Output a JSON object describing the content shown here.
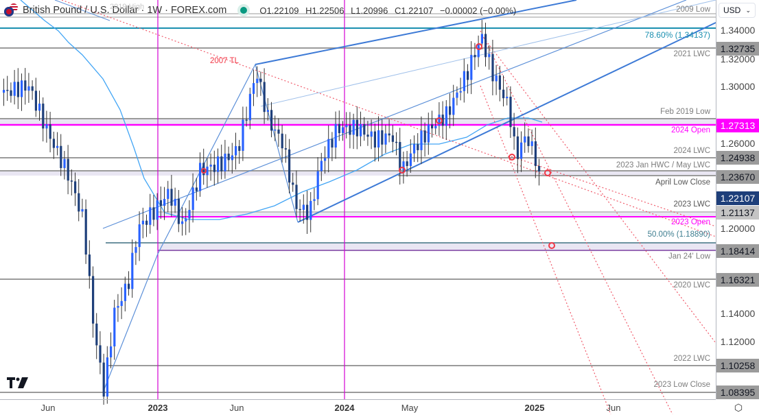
{
  "header": {
    "symbol_title": "British Pound / U.S. Dollar · 1W · FOREX.com",
    "status": "market-open-dot",
    "open": "O1.22109",
    "high": "H1.22506",
    "low": "L1.20996",
    "close": "C1.22107",
    "change": "−0.00002 (−0.00%)"
  },
  "currency_selector": {
    "value": "USD"
  },
  "y_axis": {
    "ticks": [
      "1.34000",
      "1.32000",
      "1.30000",
      "1.26000",
      "1.20000",
      "1.14000",
      "1.12000"
    ],
    "labels": [
      {
        "value": "1.32735",
        "style": "gray"
      },
      {
        "value": "1.27313",
        "style": "magenta"
      },
      {
        "value": "1.24938",
        "style": "gray"
      },
      {
        "value": "1.23670",
        "style": "gray"
      },
      {
        "value": "1.22107",
        "style": "current"
      },
      {
        "value": "1.21137",
        "style": "gray"
      },
      {
        "value": "1.18414",
        "style": "gray"
      },
      {
        "value": "1.16321",
        "style": "gray"
      },
      {
        "value": "1.10258",
        "style": "gray"
      },
      {
        "value": "1.08395",
        "style": "gray"
      }
    ]
  },
  "x_axis": {
    "ticks": [
      {
        "label": "Jun",
        "bold": false
      },
      {
        "label": "2023",
        "bold": true
      },
      {
        "label": "Jun",
        "bold": false
      },
      {
        "label": "2024",
        "bold": true
      },
      {
        "label": "May",
        "bold": false
      },
      {
        "label": "2025",
        "bold": true
      },
      {
        "label": "Jun",
        "bold": false
      }
    ]
  },
  "annotations": {
    "l2009_low": "2009 Low",
    "fib786": "78.60% (1.34137)",
    "lwc2021": "2021 LWC",
    "tl2007": "2007 TL",
    "feb2019": "Feb 2019 Low",
    "open2024": "2024 Open",
    "lwc2024": "2024 LWC",
    "hwc2023": "2023 Jan HWC / May LWC",
    "april_low": "April Low Close",
    "lwc2023": "2023 LWC",
    "open2023": "2023 Open",
    "fib50": "50.00% (1.18890)",
    "jan24_low": "Jan 24' Low",
    "lwc2020": "2020 LWC",
    "lwc2022": "2022 LWC",
    "low_close2023": "2023 Low Close",
    "high2019": "2019 High"
  },
  "colors": {
    "bull": "#2962ff",
    "bear": "#1e3f7a",
    "level_gray": "#9b9b9b",
    "magenta": "#ff00ff",
    "fib_teal": "#1a8fb0",
    "channel_blue": "#3d7ad6",
    "trend_red": "#f23645",
    "zone_fill": "#e9e6f3"
  },
  "chart_data": {
    "type": "candlestick",
    "title": "British Pound / U.S. Dollar · 1W · FOREX.com",
    "timeframe": "1W",
    "last_bar": {
      "open": 1.22109,
      "high": 1.22506,
      "low": 1.20996,
      "close": 1.22107,
      "change": -2e-05,
      "change_pct": -0.0
    },
    "ylim": [
      1.08,
      1.35
    ],
    "x_ticks": [
      "Jun",
      "2023",
      "Jun",
      "2024",
      "May",
      "2025",
      "Jun"
    ],
    "horizontal_levels": [
      {
        "label": "2009 Low",
        "price": 1.3503
      },
      {
        "label": "78.60% (1.34137)",
        "price": 1.34137
      },
      {
        "label": "2021 LWC",
        "price": 1.32735
      },
      {
        "label": "Feb 2019 Low",
        "price": 1.2773
      },
      {
        "label": "2024 Open",
        "price": 1.27313
      },
      {
        "label": "2024 LWC",
        "price": 1.24938
      },
      {
        "label": "2023 Jan HWC / May LWC",
        "price": 1.2388
      },
      {
        "label": "April Low Close",
        "price": 1.2367
      },
      {
        "label": "2023 LWC",
        "price": 1.21137
      },
      {
        "label": "2023 Open",
        "price": 1.2085
      },
      {
        "label": "50.00% (1.18890)",
        "price": 1.1889
      },
      {
        "label": "Jan 24' Low",
        "price": 1.18414
      },
      {
        "label": "2020 LWC",
        "price": 1.16321
      },
      {
        "label": "2022 LWC",
        "price": 1.10258
      },
      {
        "label": "2023 Low Close",
        "price": 1.08395
      }
    ],
    "approx_path": [
      {
        "x": "2022-May",
        "price": 1.26
      },
      {
        "x": "2022-Sep",
        "price": 1.08
      },
      {
        "x": "2023-Jan",
        "price": 1.21
      },
      {
        "x": "2023-Jul",
        "price": 1.31
      },
      {
        "x": "2023-Oct",
        "price": 1.21
      },
      {
        "x": "2024-Jan",
        "price": 1.27
      },
      {
        "x": "2024-Apr",
        "price": 1.24
      },
      {
        "x": "2024-Sep",
        "price": 1.34
      },
      {
        "x": "2024-Dec",
        "price": 1.25
      },
      {
        "x": "2025-Jan",
        "price": 1.22107
      }
    ]
  }
}
